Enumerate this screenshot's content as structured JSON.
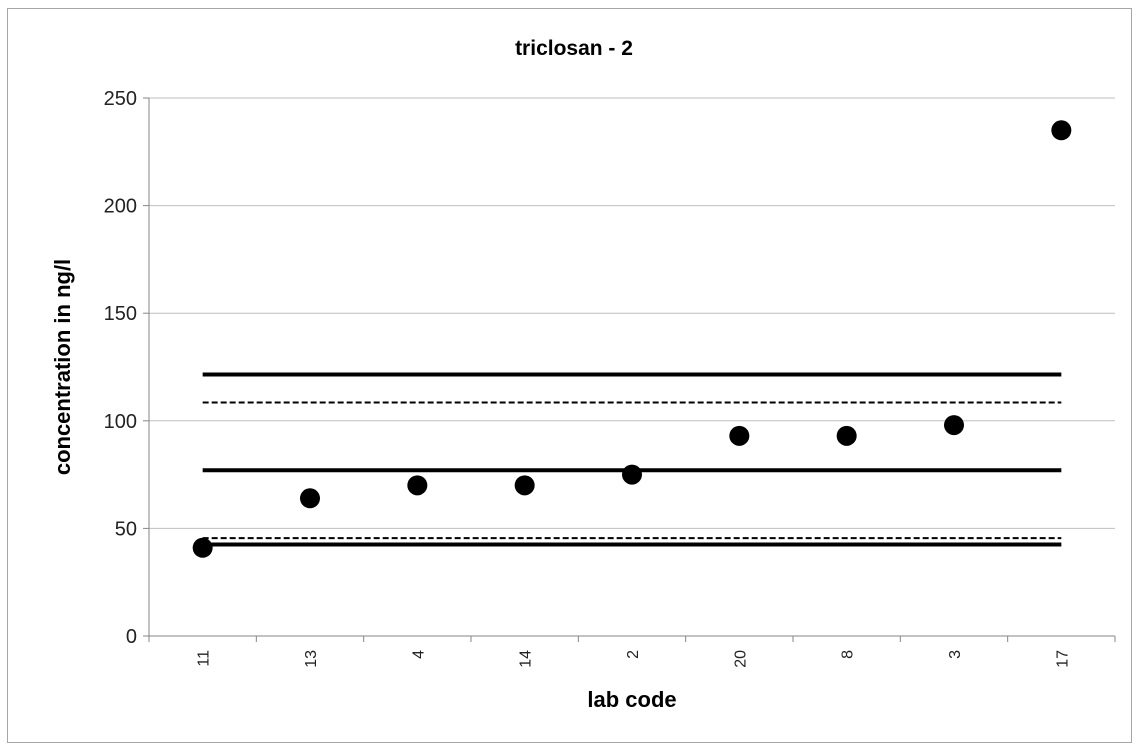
{
  "chart_data": {
    "type": "scatter",
    "title": "triclosan - 2",
    "xlabel": "lab code",
    "ylabel": "concentration in ng/l",
    "categories": [
      "11",
      "13",
      "4",
      "14",
      "2",
      "20",
      "8",
      "3",
      "17"
    ],
    "values": [
      41,
      64,
      70,
      70,
      75,
      93,
      93,
      98,
      235
    ],
    "ylim": [
      0,
      250
    ],
    "yticks": [
      "0",
      "50",
      "100",
      "150",
      "200",
      "250"
    ],
    "grid": true,
    "reference_lines": [
      {
        "value": 121.5,
        "style": "solid"
      },
      {
        "value": 108.5,
        "style": "dashed"
      },
      {
        "value": 77,
        "style": "solid"
      },
      {
        "value": 45.5,
        "style": "dashed"
      },
      {
        "value": 42.5,
        "style": "solid"
      }
    ],
    "marker_color": "#000000",
    "grid_color": "#bfbfbf"
  }
}
